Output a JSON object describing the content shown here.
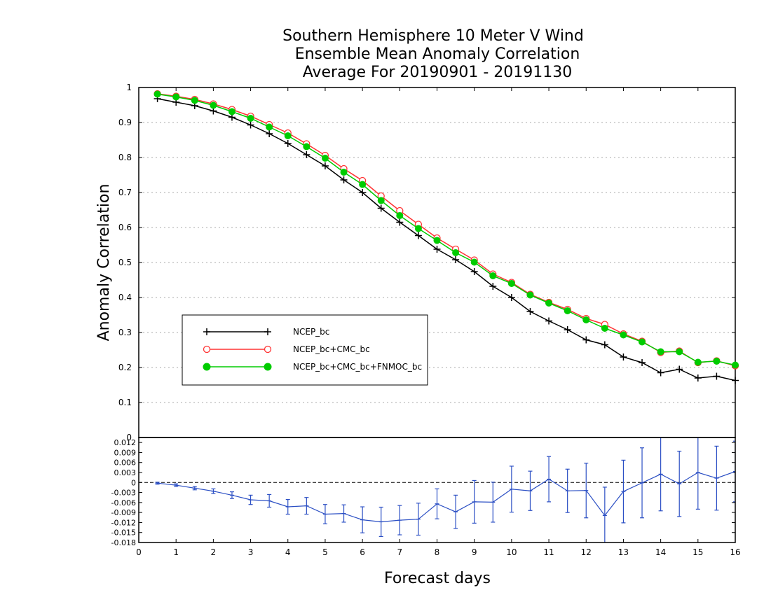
{
  "chart_data": [
    {
      "type": "line",
      "title": [
        "Southern Hemisphere 10 Meter V Wind",
        "Ensemble Mean Anomaly Correlation",
        "Average For 20190901 - 20191130"
      ],
      "ylabel": "Anomaly Correlation",
      "xlim": [
        0,
        16
      ],
      "ylim": [
        0,
        1
      ],
      "yticks": [
        "0.1",
        "0.2",
        "0.3",
        "0.4",
        "0.5",
        "0.6",
        "0.7",
        "0.8",
        "0.9",
        "1"
      ],
      "grid": true,
      "legend_position": "lower-left",
      "x": [
        0.5,
        1,
        1.5,
        2,
        2.5,
        3,
        3.5,
        4,
        4.5,
        5,
        5.5,
        6,
        6.5,
        7,
        7.5,
        8,
        8.5,
        9,
        9.5,
        10,
        10.5,
        11,
        11.5,
        12,
        12.5,
        13,
        13.5,
        14,
        14.5,
        15,
        15.5,
        16
      ],
      "series": [
        {
          "name": "NCEP_bc",
          "color": "#000000",
          "marker": "plus",
          "values": [
            0.968,
            0.958,
            0.948,
            0.933,
            0.915,
            0.893,
            0.868,
            0.84,
            0.808,
            0.776,
            0.736,
            0.7,
            0.655,
            0.615,
            0.577,
            0.538,
            0.508,
            0.474,
            0.432,
            0.4,
            0.36,
            0.333,
            0.308,
            0.279,
            0.265,
            0.23,
            0.214,
            0.185,
            0.195,
            0.17,
            0.175,
            0.163
          ]
        },
        {
          "name": "NCEP_bc+CMC_bc",
          "color": "#ff3333",
          "marker": "open-circle",
          "values": [
            0.982,
            0.975,
            0.966,
            0.953,
            0.937,
            0.918,
            0.894,
            0.87,
            0.839,
            0.806,
            0.768,
            0.734,
            0.69,
            0.648,
            0.609,
            0.57,
            0.538,
            0.507,
            0.467,
            0.443,
            0.409,
            0.386,
            0.366,
            0.34,
            0.323,
            0.296,
            0.275,
            0.243,
            0.247,
            0.214,
            0.219,
            0.205
          ]
        },
        {
          "name": "NCEP_bc+CMC_bc+FNMOC_bc",
          "color": "#00cc00",
          "marker": "filled-circle",
          "values": [
            0.981,
            0.973,
            0.963,
            0.949,
            0.931,
            0.912,
            0.887,
            0.862,
            0.831,
            0.798,
            0.758,
            0.723,
            0.677,
            0.634,
            0.597,
            0.563,
            0.528,
            0.501,
            0.462,
            0.44,
            0.407,
            0.384,
            0.362,
            0.336,
            0.312,
            0.293,
            0.273,
            0.245,
            0.245,
            0.215,
            0.218,
            0.207
          ]
        }
      ]
    },
    {
      "type": "line",
      "xlabel": "Forecast days",
      "xlim": [
        0,
        16
      ],
      "ylim": [
        -0.018,
        0.0135
      ],
      "xticks": [
        "0",
        "1",
        "2",
        "3",
        "4",
        "5",
        "6",
        "7",
        "8",
        "9",
        "10",
        "11",
        "12",
        "13",
        "14",
        "15",
        "16"
      ],
      "yticks": [
        "0.012",
        "0.009",
        "0.006",
        "0.003",
        "0",
        "-0.003",
        "-0.006",
        "-0.009",
        "-0.012",
        "-0.015",
        "-0.018"
      ],
      "zero_line": "dashed",
      "color": "#2b4fc4",
      "x": [
        0.5,
        1,
        1.5,
        2,
        2.5,
        3,
        3.5,
        4,
        4.5,
        5,
        5.5,
        6,
        6.5,
        7,
        7.5,
        8,
        8.5,
        9,
        9.5,
        10,
        10.5,
        11,
        11.5,
        12,
        12.5,
        13,
        13.5,
        14,
        14.5,
        15,
        15.5,
        16
      ],
      "values": [
        -0.0002,
        -0.0008,
        -0.0017,
        -0.0026,
        -0.0038,
        -0.0052,
        -0.0055,
        -0.0073,
        -0.007,
        -0.0095,
        -0.0093,
        -0.0112,
        -0.0118,
        -0.0113,
        -0.011,
        -0.0064,
        -0.0088,
        -0.0058,
        -0.0059,
        -0.002,
        -0.0025,
        0.001,
        -0.0025,
        -0.0024,
        -0.0099,
        -0.0027,
        -0.0001,
        0.0025,
        -0.0004,
        0.003,
        0.0013,
        0.0033
      ],
      "error": [
        0.0003,
        0.0004,
        0.0005,
        0.0007,
        0.001,
        0.0014,
        0.0019,
        0.0022,
        0.0025,
        0.0029,
        0.0026,
        0.0039,
        0.0044,
        0.0044,
        0.0048,
        0.0045,
        0.005,
        0.0064,
        0.006,
        0.0069,
        0.0059,
        0.0068,
        0.0065,
        0.0082,
        0.0085,
        0.0094,
        0.0105,
        0.011,
        0.0098,
        0.011,
        0.0096,
        0.0091
      ]
    }
  ]
}
